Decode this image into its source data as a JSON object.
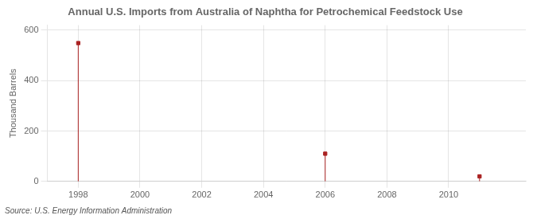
{
  "chart_data": {
    "type": "stem",
    "title": "Annual U.S. Imports from Australia of Naphtha for Petrochemical Feedstock Use",
    "ylabel": "Thousand Barrels",
    "source": "Source: U.S. Energy Information Administration",
    "x": [
      1998,
      2006,
      2011
    ],
    "values": [
      549,
      110,
      20
    ],
    "color": "#aa2222",
    "marker": "square",
    "xlim": [
      1997.0,
      2012.5
    ],
    "xticks": [
      1998,
      2000,
      2002,
      2004,
      2006,
      2008,
      2010
    ],
    "ylim": [
      0,
      620
    ],
    "yticks": [
      0,
      200,
      400,
      600
    ],
    "grid": true
  }
}
